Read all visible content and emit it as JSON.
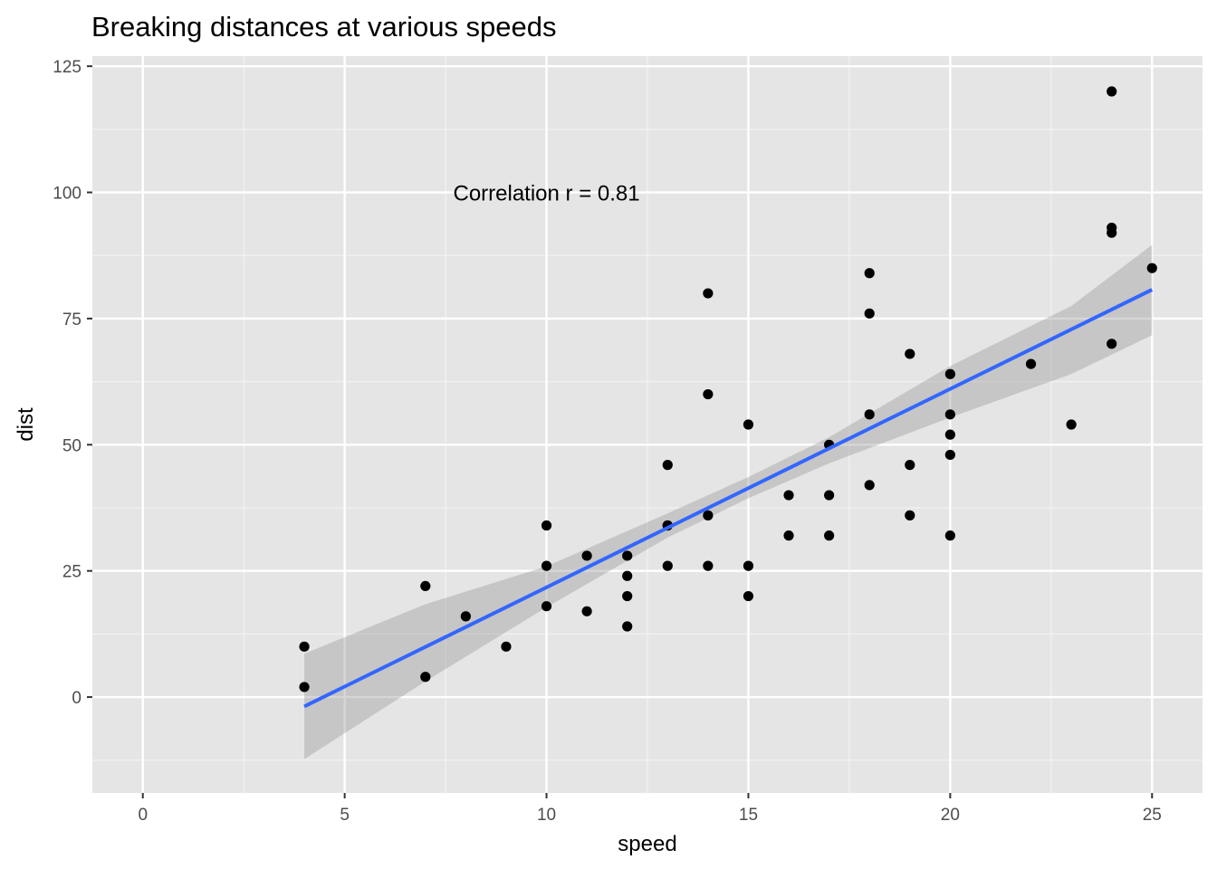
{
  "chart_data": {
    "type": "scatter",
    "title": "Breaking distances at various speeds",
    "xlabel": "speed",
    "ylabel": "dist",
    "xlim": [
      -1.25,
      26.25
    ],
    "ylim": [
      -19,
      127
    ],
    "xticks": [
      0,
      5,
      10,
      15,
      20,
      25
    ],
    "yticks": [
      0,
      25,
      50,
      75,
      100,
      125
    ],
    "x_tick_labels": [
      "0",
      "5",
      "10",
      "15",
      "20",
      "25"
    ],
    "y_tick_labels": [
      "0",
      "25",
      "50",
      "75",
      "100",
      "125"
    ],
    "grid": true,
    "legend": "none",
    "points": [
      [
        4,
        2
      ],
      [
        4,
        10
      ],
      [
        7,
        4
      ],
      [
        7,
        22
      ],
      [
        8,
        16
      ],
      [
        9,
        10
      ],
      [
        10,
        18
      ],
      [
        10,
        26
      ],
      [
        10,
        34
      ],
      [
        11,
        17
      ],
      [
        11,
        28
      ],
      [
        12,
        14
      ],
      [
        12,
        20
      ],
      [
        12,
        24
      ],
      [
        12,
        28
      ],
      [
        13,
        26
      ],
      [
        13,
        34
      ],
      [
        13,
        34
      ],
      [
        13,
        46
      ],
      [
        14,
        26
      ],
      [
        14,
        36
      ],
      [
        14,
        60
      ],
      [
        14,
        80
      ],
      [
        15,
        20
      ],
      [
        15,
        26
      ],
      [
        15,
        54
      ],
      [
        16,
        32
      ],
      [
        16,
        40
      ],
      [
        17,
        32
      ],
      [
        17,
        40
      ],
      [
        17,
        50
      ],
      [
        18,
        42
      ],
      [
        18,
        56
      ],
      [
        18,
        76
      ],
      [
        18,
        84
      ],
      [
        19,
        36
      ],
      [
        19,
        46
      ],
      [
        19,
        68
      ],
      [
        20,
        32
      ],
      [
        20,
        48
      ],
      [
        20,
        52
      ],
      [
        20,
        56
      ],
      [
        20,
        64
      ],
      [
        22,
        66
      ],
      [
        23,
        54
      ],
      [
        24,
        70
      ],
      [
        24,
        92
      ],
      [
        24,
        93
      ],
      [
        24,
        120
      ],
      [
        25,
        85
      ]
    ],
    "fit_line": {
      "method": "linear regression",
      "intercept": -17.58,
      "slope": 3.932,
      "x_range": [
        4,
        25
      ],
      "color": "#3366ff"
    },
    "confidence_band": {
      "level": 0.95,
      "x": [
        4,
        7,
        10,
        13,
        15,
        17,
        20,
        23,
        25
      ],
      "lower": [
        -12.3,
        3.1,
        17.8,
        31.6,
        39.4,
        46.3,
        55.4,
        64.0,
        71.7
      ],
      "upper": [
        8.6,
        18.4,
        25.9,
        36.4,
        43.6,
        51.5,
        65.6,
        77.5,
        89.6
      ],
      "color": "#999999"
    },
    "annotation": {
      "text": "Correlation r = 0.81",
      "x": 10,
      "y": 100
    },
    "colors": {
      "panel_background": "#e5e5e5",
      "grid_major": "#ffffff",
      "points": "#000000"
    }
  }
}
